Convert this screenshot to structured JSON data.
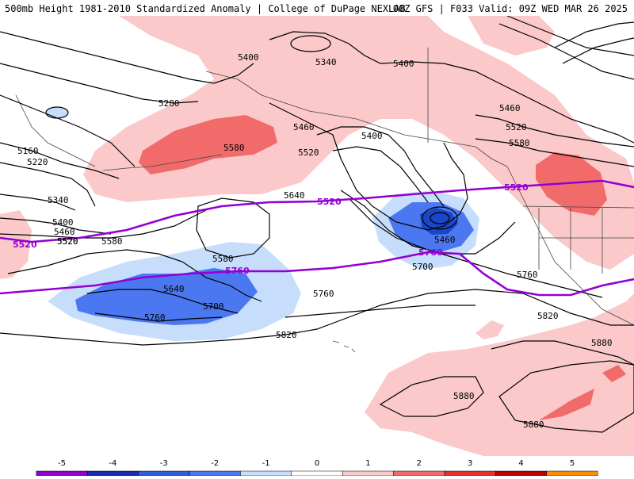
{
  "header": {
    "title_left": "500mb Height 1981-2010 Standardized Anomaly | College of DuPage NEXLAB",
    "title_right": "00Z GFS | F033 Valid: 09Z WED MAR 26 2025"
  },
  "colors": {
    "pink": "#fbc9c9",
    "red": "#f26b6b",
    "light_blue": "#c6defc",
    "mid_blue": "#4b78f0",
    "dark_blue": "#1a46c8",
    "purple": "#9400d3",
    "contour": "#000000",
    "borders": "#444444"
  },
  "contour_labels": [
    "5400",
    "5340",
    "5400",
    "5280",
    "5460",
    "5160",
    "5220",
    "5580",
    "5520",
    "5400",
    "5460",
    "5520",
    "5580",
    "5640",
    "5520",
    "5340",
    "5400",
    "5460",
    "5520",
    "5580",
    "5580",
    "5460",
    "5700",
    "5640",
    "5700",
    "5760",
    "5760",
    "5820",
    "5760",
    "5820",
    "5880",
    "5880",
    "5880"
  ],
  "highlight_contours": [
    "5520",
    "5760",
    "5520",
    "5520",
    "5760"
  ],
  "colorbar": {
    "ticks": [
      "-5",
      "-4",
      "-3",
      "-2",
      "-1",
      "0",
      "1",
      "2",
      "3",
      "4",
      "5"
    ],
    "colors": [
      "#9400d3",
      "#1a2bb5",
      "#2f5ee0",
      "#4b78f0",
      "#c6defc",
      "#ffffff",
      "#fbc9c9",
      "#f26b6b",
      "#e83030",
      "#c00000",
      "#ff8c00"
    ]
  }
}
